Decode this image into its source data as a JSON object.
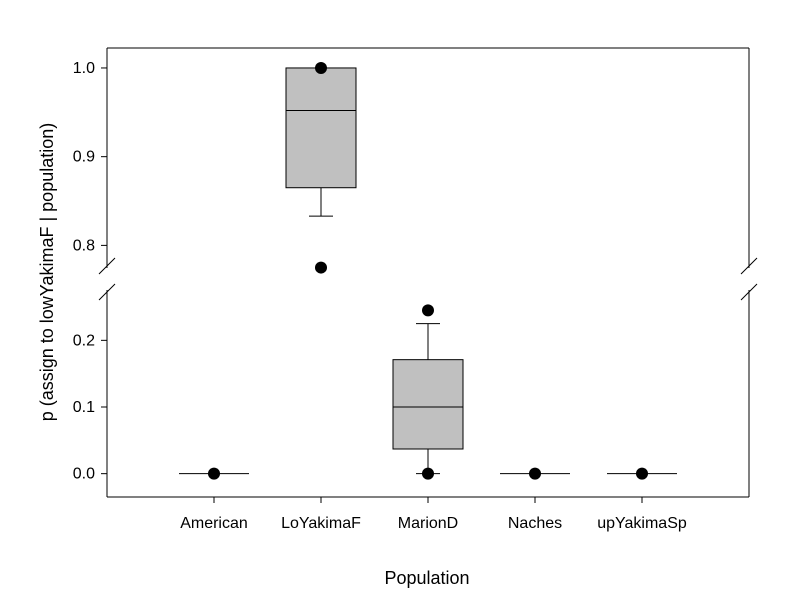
{
  "chart_data": {
    "type": "boxplot",
    "xlabel": "Population",
    "ylabel": "p (assign to lowYakimaF | population)",
    "categories": [
      "American",
      "LoYakimaF",
      "MarionD",
      "Naches",
      "upYakimaSp"
    ],
    "y_axis_break": {
      "lower_ylim": [
        -0.035,
        0.28
      ],
      "upper_ylim": [
        0.77,
        1.0225
      ],
      "lower_ticks": [
        0.0,
        0.1,
        0.2
      ],
      "upper_ticks": [
        0.8,
        0.9,
        1.0
      ],
      "tick_labels_lower": [
        "0.0",
        "0.1",
        "0.2"
      ],
      "tick_labels_upper": [
        "0.8",
        "0.9",
        "1.0"
      ]
    },
    "boxes": [
      {
        "category": "American",
        "whisker_low": 0.0,
        "q1": 0.0,
        "median": 0.0,
        "q3": 0.0,
        "whisker_high": 0.0,
        "outliers": [
          0.0
        ]
      },
      {
        "category": "LoYakimaF",
        "whisker_low": 0.833,
        "q1": 0.865,
        "median": 0.952,
        "q3": 1.0,
        "whisker_high": 1.0,
        "outliers": [
          0.775,
          1.0
        ]
      },
      {
        "category": "MarionD",
        "whisker_low": 0.0,
        "q1": 0.037,
        "median": 0.1,
        "q3": 0.171,
        "whisker_high": 0.225,
        "outliers": [
          0.0,
          0.245
        ]
      },
      {
        "category": "Naches",
        "whisker_low": 0.0,
        "q1": 0.0,
        "median": 0.0,
        "q3": 0.0,
        "whisker_high": 0.0,
        "outliers": [
          0.0
        ]
      },
      {
        "category": "upYakimaSp",
        "whisker_low": 0.0,
        "q1": 0.0,
        "median": 0.0,
        "q3": 0.0,
        "whisker_high": 0.0,
        "outliers": [
          0.0
        ]
      }
    ],
    "box_fill": "#c0c0c0",
    "grid": false
  }
}
